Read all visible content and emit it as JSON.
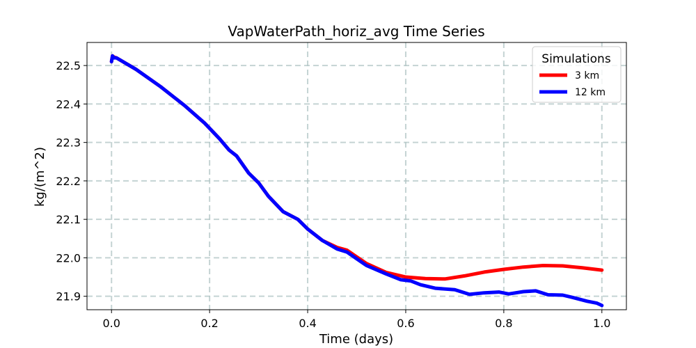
{
  "chart_data": {
    "type": "line",
    "title": "VapWaterPath_horiz_avg Time Series",
    "xlabel": "Time (days)",
    "ylabel": "kg/(m^2)",
    "xlim": [
      -0.05,
      1.05
    ],
    "ylim": [
      21.865,
      22.56
    ],
    "xticks": [
      0.0,
      0.2,
      0.4,
      0.6,
      0.8,
      1.0
    ],
    "xtick_labels": [
      "0.0",
      "0.2",
      "0.4",
      "0.6",
      "0.8",
      "1.0"
    ],
    "yticks": [
      21.9,
      22.0,
      22.1,
      22.2,
      22.3,
      22.4,
      22.5
    ],
    "ytick_labels": [
      "21.9",
      "22.0",
      "22.1",
      "22.2",
      "22.3",
      "22.4",
      "22.5"
    ],
    "grid": true,
    "legend": {
      "title": "Simulations",
      "position": "top-right"
    },
    "series": [
      {
        "name": "3 km",
        "color": "#ff0000",
        "x": [
          0.0,
          0.002,
          0.005,
          0.01,
          0.05,
          0.1,
          0.15,
          0.19,
          0.22,
          0.24,
          0.255,
          0.28,
          0.3,
          0.32,
          0.35,
          0.38,
          0.4,
          0.43,
          0.46,
          0.48,
          0.52,
          0.56,
          0.6,
          0.64,
          0.68,
          0.72,
          0.76,
          0.8,
          0.84,
          0.88,
          0.92,
          0.96,
          1.0
        ],
        "y": [
          22.51,
          22.525,
          22.522,
          22.52,
          22.49,
          22.445,
          22.395,
          22.35,
          22.31,
          22.28,
          22.265,
          22.22,
          22.195,
          22.16,
          22.12,
          22.1,
          22.075,
          22.045,
          22.027,
          22.02,
          21.985,
          21.962,
          21.95,
          21.946,
          21.945,
          21.953,
          21.963,
          21.97,
          21.976,
          21.98,
          21.979,
          21.974,
          21.968
        ]
      },
      {
        "name": "12 km",
        "color": "#0000ff",
        "x": [
          0.0,
          0.002,
          0.005,
          0.01,
          0.05,
          0.1,
          0.15,
          0.19,
          0.22,
          0.24,
          0.255,
          0.28,
          0.3,
          0.32,
          0.35,
          0.38,
          0.4,
          0.43,
          0.46,
          0.48,
          0.52,
          0.56,
          0.59,
          0.61,
          0.63,
          0.66,
          0.7,
          0.73,
          0.76,
          0.79,
          0.81,
          0.84,
          0.865,
          0.89,
          0.92,
          0.94,
          0.97,
          0.99,
          1.0
        ],
        "y": [
          22.51,
          22.525,
          22.52,
          22.52,
          22.49,
          22.445,
          22.395,
          22.35,
          22.31,
          22.28,
          22.265,
          22.22,
          22.195,
          22.16,
          22.12,
          22.1,
          22.075,
          22.045,
          22.023,
          22.015,
          21.98,
          21.958,
          21.943,
          21.94,
          21.93,
          21.921,
          21.917,
          21.905,
          21.909,
          21.911,
          21.906,
          21.912,
          21.914,
          21.904,
          21.903,
          21.897,
          21.887,
          21.882,
          21.876
        ]
      }
    ]
  }
}
